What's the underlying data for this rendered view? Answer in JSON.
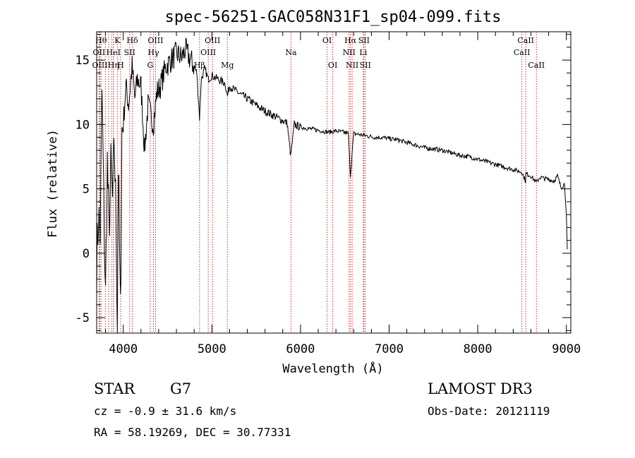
{
  "chart_data": {
    "type": "line",
    "title": "spec-56251-GAC058N31F1_sp04-099.fits",
    "xlabel": "Wavelength (Å)",
    "ylabel": "Flux (relative)",
    "xlim": [
      3700,
      9050
    ],
    "ylim": [
      -6.2,
      17.2
    ],
    "xticks": [
      4000,
      5000,
      6000,
      7000,
      8000,
      9000
    ],
    "yticks": [
      -5,
      0,
      5,
      10,
      15
    ],
    "grid": false,
    "line_color": "#000000",
    "marker_color": "#cc3333",
    "series": [
      {
        "name": "flux",
        "x": [
          3700,
          3720,
          3740,
          3760,
          3780,
          3800,
          3820,
          3840,
          3860,
          3880,
          3900,
          3920,
          3933,
          3945,
          3968,
          3985,
          4000,
          4030,
          4060,
          4100,
          4130,
          4160,
          4200,
          4240,
          4280,
          4300,
          4320,
          4340,
          4380,
          4420,
          4480,
          4540,
          4600,
          4660,
          4700,
          4760,
          4800,
          4830,
          4861,
          4880,
          4920,
          4960,
          5000,
          5050,
          5100,
          5150,
          5175,
          5200,
          5270,
          5330,
          5400,
          5480,
          5560,
          5640,
          5720,
          5800,
          5850,
          5890,
          5930,
          6000,
          6080,
          6160,
          6240,
          6320,
          6400,
          6480,
          6540,
          6563,
          6600,
          6680,
          6760,
          6840,
          6920,
          7000,
          7100,
          7200,
          7300,
          7400,
          7500,
          7600,
          7700,
          7800,
          7900,
          8000,
          8100,
          8200,
          8300,
          8400,
          8498,
          8540,
          8542,
          8600,
          8662,
          8700,
          8760,
          8820,
          8860,
          8900,
          8940,
          8980,
          9000,
          9010
        ],
        "y": [
          -1.0,
          3.0,
          1.5,
          12.5,
          4.0,
          -3.5,
          7.0,
          1.5,
          6.5,
          4.0,
          8.5,
          2.0,
          -5.5,
          7.0,
          -5.0,
          9.5,
          10.0,
          13.0,
          11.5,
          14.5,
          12.0,
          13.5,
          13.0,
          8.0,
          11.5,
          11.0,
          10.5,
          10.0,
          12.5,
          13.0,
          14.5,
          15.0,
          15.5,
          15.2,
          15.8,
          15.0,
          14.5,
          14.0,
          10.5,
          13.5,
          14.3,
          13.5,
          13.8,
          13.6,
          13.4,
          13.2,
          12.2,
          13.0,
          12.6,
          12.3,
          12.0,
          11.6,
          11.2,
          10.9,
          10.6,
          10.3,
          10.1,
          7.5,
          10.0,
          9.8,
          9.7,
          9.6,
          9.5,
          9.4,
          9.5,
          9.4,
          9.3,
          6.0,
          9.3,
          9.2,
          9.1,
          9.0,
          9.0,
          8.9,
          8.8,
          8.6,
          8.4,
          8.2,
          8.1,
          8.0,
          7.8,
          7.6,
          7.5,
          7.3,
          7.1,
          6.9,
          6.7,
          6.5,
          6.3,
          5.6,
          6.2,
          6.0,
          5.5,
          5.9,
          5.8,
          5.7,
          5.6,
          6.0,
          5.1,
          5.4,
          3.0,
          0.3
        ]
      }
    ],
    "line_markers": [
      {
        "wavelength": 3750,
        "label": "Hθ",
        "row": 1
      },
      {
        "wavelength": 3727,
        "label": "OII",
        "row": 2
      },
      {
        "wavelength": 3736,
        "label": "OIII",
        "row": 3
      },
      {
        "wavelength": 3798,
        "label": "",
        "row": 0
      },
      {
        "wavelength": 3835,
        "label": "",
        "row": 0
      },
      {
        "wavelength": 3869,
        "label": "",
        "row": 0
      },
      {
        "wavelength": 3889,
        "label": "HeI",
        "row": 2
      },
      {
        "wavelength": 3890,
        "label": "Hη",
        "row": 3
      },
      {
        "wavelength": 3934,
        "label": "K",
        "row": 1
      },
      {
        "wavelength": 3970,
        "label": "H",
        "row": 3
      },
      {
        "wavelength": 4072,
        "label": "SII",
        "row": 2
      },
      {
        "wavelength": 4102,
        "label": "Hδ",
        "row": 1
      },
      {
        "wavelength": 4304,
        "label": "G",
        "row": 3
      },
      {
        "wavelength": 4341,
        "label": "Hγ",
        "row": 2
      },
      {
        "wavelength": 4364,
        "label": "OIII",
        "row": 1
      },
      {
        "wavelength": 4861,
        "label": "Hβ",
        "row": 3
      },
      {
        "wavelength": 4959,
        "label": "OIII",
        "row": 2
      },
      {
        "wavelength": 5007,
        "label": "OIII",
        "row": 1
      },
      {
        "wavelength": 5175,
        "label": "Mg",
        "row": 3
      },
      {
        "wavelength": 5893,
        "label": "Na",
        "row": 2
      },
      {
        "wavelength": 6300,
        "label": "OI",
        "row": 1
      },
      {
        "wavelength": 6364,
        "label": "OI",
        "row": 3
      },
      {
        "wavelength": 6548,
        "label": "NII",
        "row": 2
      },
      {
        "wavelength": 6563,
        "label": "Hα",
        "row": 1
      },
      {
        "wavelength": 6583,
        "label": "NII",
        "row": 3
      },
      {
        "wavelength": 6708,
        "label": "Li",
        "row": 2
      },
      {
        "wavelength": 6716,
        "label": "SII",
        "row": 1
      },
      {
        "wavelength": 6731,
        "label": "SII",
        "row": 3
      },
      {
        "wavelength": 8498,
        "label": "CaII",
        "row": 2
      },
      {
        "wavelength": 8542,
        "label": "CaII",
        "row": 1
      },
      {
        "wavelength": 8662,
        "label": "CaII",
        "row": 3
      }
    ]
  },
  "info": {
    "object_type": "STAR",
    "subclass": "G7",
    "survey": "LAMOST DR3",
    "cz_text": "cz = -0.9 ± 31.6 km/s",
    "obs_date": "Obs-Date: 20121119",
    "coords": "RA =  58.19269, DEC =  30.77331"
  }
}
